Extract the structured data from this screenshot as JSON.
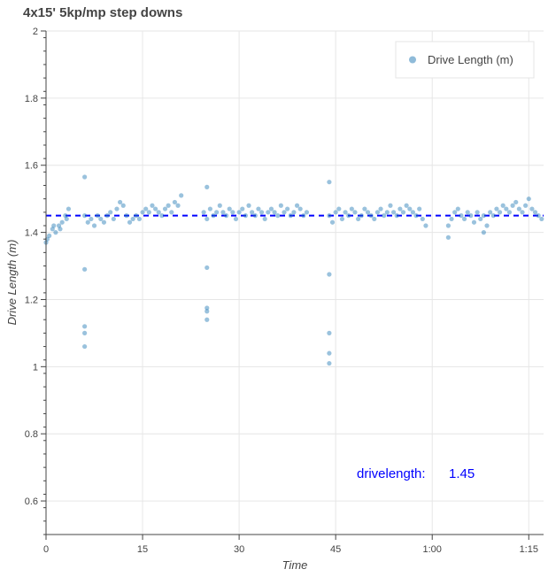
{
  "chart_data": {
    "type": "scatter",
    "title": "4x15' 5kp/mp step downs",
    "xlabel": "Time",
    "ylabel": "Drive Length (m)",
    "xlim": [
      0,
      77.3
    ],
    "ylim": [
      0.5,
      2
    ],
    "x_ticks": [
      {
        "v": 0,
        "label": "0"
      },
      {
        "v": 15,
        "label": "15"
      },
      {
        "v": 30,
        "label": "30"
      },
      {
        "v": 45,
        "label": "45"
      },
      {
        "v": 60,
        "label": "1:00"
      },
      {
        "v": 75,
        "label": "1:15"
      }
    ],
    "y_ticks": [
      {
        "v": 0.6,
        "label": "0.6"
      },
      {
        "v": 0.8,
        "label": "0.8"
      },
      {
        "v": 1,
        "label": "1"
      },
      {
        "v": 1.2,
        "label": "1.2"
      },
      {
        "v": 1.4,
        "label": "1.4"
      },
      {
        "v": 1.6,
        "label": "1.6"
      },
      {
        "v": 1.8,
        "label": "1.8"
      },
      {
        "v": 2,
        "label": "2"
      }
    ],
    "grid": true,
    "legend": {
      "position": "top-right",
      "entries": [
        "Drive Length (m)"
      ]
    },
    "colors": {
      "points": "#1f77b4",
      "reference_line": "#0000ff",
      "annotation": "#0000ff"
    },
    "reference_line": {
      "y": 1.45,
      "style": "dashed"
    },
    "annotation": {
      "label": "drivelength:",
      "value": "1.45"
    },
    "series": [
      {
        "name": "Drive Length (m)",
        "points": [
          [
            0,
            1.37
          ],
          [
            0.2,
            1.38
          ],
          [
            0.5,
            1.39
          ],
          [
            1,
            1.41
          ],
          [
            1.2,
            1.42
          ],
          [
            1.5,
            1.4
          ],
          [
            2,
            1.42
          ],
          [
            2.2,
            1.41
          ],
          [
            2.5,
            1.43
          ],
          [
            3,
            1.45
          ],
          [
            3.2,
            1.44
          ],
          [
            3.5,
            1.47
          ],
          [
            6,
            1.565
          ],
          [
            6,
            1.29
          ],
          [
            6,
            1.12
          ],
          [
            6,
            1.1
          ],
          [
            6,
            1.06
          ],
          [
            6,
            1.45
          ],
          [
            6.5,
            1.43
          ],
          [
            7,
            1.44
          ],
          [
            7.5,
            1.42
          ],
          [
            8,
            1.45
          ],
          [
            8.5,
            1.44
          ],
          [
            9,
            1.43
          ],
          [
            9.5,
            1.45
          ],
          [
            10,
            1.46
          ],
          [
            10.5,
            1.44
          ],
          [
            11,
            1.47
          ],
          [
            11.5,
            1.49
          ],
          [
            12,
            1.48
          ],
          [
            12.5,
            1.45
          ],
          [
            13,
            1.43
          ],
          [
            13.5,
            1.44
          ],
          [
            14,
            1.45
          ],
          [
            14.5,
            1.44
          ],
          [
            15,
            1.46
          ],
          [
            15.5,
            1.47
          ],
          [
            16,
            1.46
          ],
          [
            16.5,
            1.48
          ],
          [
            17,
            1.47
          ],
          [
            17.5,
            1.46
          ],
          [
            18,
            1.45
          ],
          [
            18.5,
            1.47
          ],
          [
            19,
            1.48
          ],
          [
            19.5,
            1.46
          ],
          [
            20,
            1.49
          ],
          [
            20.5,
            1.48
          ],
          [
            21,
            1.51
          ],
          [
            25,
            1.535
          ],
          [
            25,
            1.295
          ],
          [
            25,
            1.175
          ],
          [
            25,
            1.165
          ],
          [
            25,
            1.14
          ],
          [
            24.5,
            1.46
          ],
          [
            25,
            1.44
          ],
          [
            25.5,
            1.47
          ],
          [
            26,
            1.45
          ],
          [
            26.5,
            1.46
          ],
          [
            27,
            1.48
          ],
          [
            27.5,
            1.46
          ],
          [
            28,
            1.45
          ],
          [
            28.5,
            1.47
          ],
          [
            29,
            1.46
          ],
          [
            29.5,
            1.44
          ],
          [
            30,
            1.46
          ],
          [
            30.5,
            1.47
          ],
          [
            31,
            1.45
          ],
          [
            31.5,
            1.48
          ],
          [
            32,
            1.46
          ],
          [
            32.5,
            1.45
          ],
          [
            33,
            1.47
          ],
          [
            33.5,
            1.46
          ],
          [
            34,
            1.44
          ],
          [
            34.5,
            1.46
          ],
          [
            35,
            1.47
          ],
          [
            35.5,
            1.46
          ],
          [
            36,
            1.45
          ],
          [
            36.5,
            1.48
          ],
          [
            37,
            1.46
          ],
          [
            37.5,
            1.47
          ],
          [
            38,
            1.45
          ],
          [
            38.5,
            1.46
          ],
          [
            39,
            1.48
          ],
          [
            39.5,
            1.47
          ],
          [
            40,
            1.45
          ],
          [
            40.5,
            1.46
          ],
          [
            44,
            1.55
          ],
          [
            44,
            1.275
          ],
          [
            44,
            1.1
          ],
          [
            44,
            1.04
          ],
          [
            44,
            1.01
          ],
          [
            44,
            1.45
          ],
          [
            44.5,
            1.43
          ],
          [
            45,
            1.46
          ],
          [
            45.5,
            1.47
          ],
          [
            46,
            1.44
          ],
          [
            46.5,
            1.46
          ],
          [
            47,
            1.45
          ],
          [
            47.5,
            1.47
          ],
          [
            48,
            1.46
          ],
          [
            48.5,
            1.44
          ],
          [
            49,
            1.45
          ],
          [
            49.5,
            1.47
          ],
          [
            50,
            1.46
          ],
          [
            50.5,
            1.45
          ],
          [
            51,
            1.44
          ],
          [
            51.5,
            1.46
          ],
          [
            52,
            1.47
          ],
          [
            52.5,
            1.45
          ],
          [
            53,
            1.46
          ],
          [
            53.5,
            1.48
          ],
          [
            54,
            1.46
          ],
          [
            54.5,
            1.45
          ],
          [
            55,
            1.47
          ],
          [
            55.5,
            1.46
          ],
          [
            56,
            1.48
          ],
          [
            56.5,
            1.47
          ],
          [
            57,
            1.46
          ],
          [
            57.5,
            1.45
          ],
          [
            58,
            1.47
          ],
          [
            58.5,
            1.44
          ],
          [
            59,
            1.42
          ],
          [
            62.5,
            1.385
          ],
          [
            68,
            1.4
          ],
          [
            62.5,
            1.42
          ],
          [
            63,
            1.44
          ],
          [
            63.5,
            1.46
          ],
          [
            64,
            1.47
          ],
          [
            64.5,
            1.45
          ],
          [
            65,
            1.44
          ],
          [
            65.5,
            1.46
          ],
          [
            66,
            1.45
          ],
          [
            66.5,
            1.43
          ],
          [
            67,
            1.46
          ],
          [
            67.5,
            1.44
          ],
          [
            68,
            1.45
          ],
          [
            68.5,
            1.42
          ],
          [
            69,
            1.46
          ],
          [
            69.5,
            1.45
          ],
          [
            70,
            1.47
          ],
          [
            70.5,
            1.46
          ],
          [
            71,
            1.48
          ],
          [
            71.5,
            1.47
          ],
          [
            72,
            1.46
          ],
          [
            72.5,
            1.48
          ],
          [
            73,
            1.49
          ],
          [
            73.5,
            1.47
          ],
          [
            74,
            1.46
          ],
          [
            74.5,
            1.48
          ],
          [
            75,
            1.5
          ],
          [
            75.5,
            1.47
          ],
          [
            76,
            1.46
          ],
          [
            76.5,
            1.45
          ],
          [
            77,
            1.44
          ]
        ]
      }
    ]
  }
}
